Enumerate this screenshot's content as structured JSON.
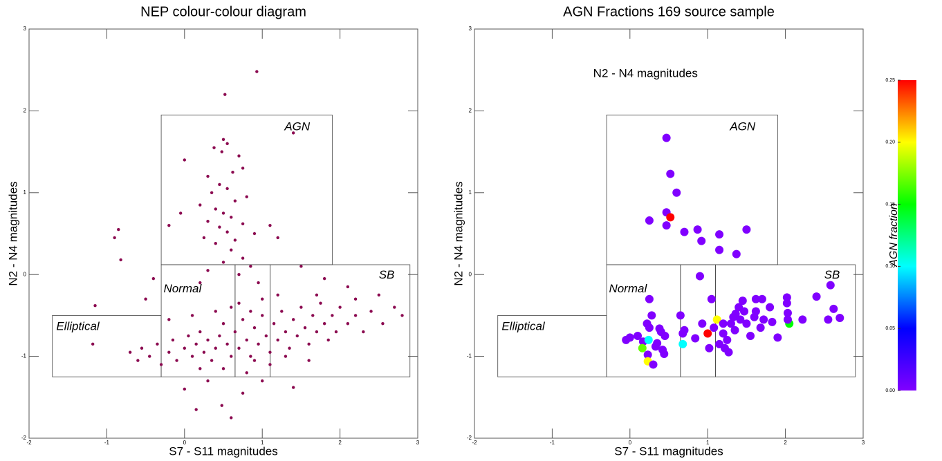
{
  "chart_data": [
    {
      "type": "scatter",
      "title": "NEP colour-colour diagram",
      "xlabel": "S7 - S11 magnitudes",
      "ylabel": "N2 - N4 magnitudes",
      "xlim": [
        -2,
        3
      ],
      "ylim": [
        -2,
        3
      ],
      "xticks": [
        -2,
        -1,
        0,
        1,
        2,
        3
      ],
      "yticks": [
        -2,
        -1,
        0,
        1,
        2,
        3
      ],
      "regions": [
        {
          "label": "Elliptical",
          "x": [
            -1.7,
            -0.3
          ],
          "y": [
            -1.25,
            -0.5
          ]
        },
        {
          "label": "AGN",
          "x": [
            -0.3,
            1.9
          ],
          "y": [
            0.12,
            1.95
          ]
        },
        {
          "label": "Normal",
          "x": [
            -0.3,
            0.65
          ],
          "y": [
            -1.25,
            0.12
          ]
        },
        {
          "label": null,
          "x": [
            0.65,
            1.1
          ],
          "y": [
            -1.25,
            0.12
          ]
        },
        {
          "label": "SB",
          "x": [
            1.1,
            2.9
          ],
          "y": [
            -1.25,
            0.12
          ]
        }
      ],
      "region_color": "#99a01a",
      "color": "#8b0a50",
      "x": [
        0.93,
        0.52,
        1.4,
        0.5,
        0.55,
        0.48,
        0.38,
        0.7,
        0.75,
        0.62,
        0.3,
        0.45,
        0.55,
        0.35,
        0.8,
        0.65,
        0.2,
        0.4,
        0.5,
        0.6,
        0.3,
        0.75,
        0.45,
        0.55,
        0.9,
        0.25,
        0.65,
        0.4,
        1.1,
        1.2,
        0.0,
        -0.05,
        -0.2,
        -0.85,
        -0.9,
        -0.82,
        -0.4,
        -1.15,
        -1.18,
        -0.5,
        0.6,
        0.75,
        0.5,
        0.85,
        0.3,
        0.7,
        1.5,
        1.8,
        2.1,
        2.5,
        2.7,
        2.8,
        0.2,
        0.95,
        -0.7,
        -0.6,
        -0.55,
        -0.45,
        -0.35,
        -0.3,
        -0.2,
        -0.15,
        -0.1,
        0.0,
        0.05,
        0.1,
        0.15,
        0.2,
        0.25,
        0.3,
        0.35,
        0.4,
        0.45,
        0.5,
        0.55,
        0.6,
        0.65,
        0.7,
        0.75,
        0.8,
        0.85,
        0.9,
        0.95,
        1.0,
        1.05,
        1.1,
        1.15,
        1.2,
        1.25,
        1.3,
        1.35,
        1.4,
        1.45,
        1.5,
        1.55,
        1.6,
        1.65,
        1.7,
        1.75,
        1.8,
        1.85,
        1.9,
        1.95,
        2.0,
        2.1,
        2.2,
        2.3,
        2.4,
        2.55,
        0.1,
        0.2,
        0.5,
        0.8,
        1.1,
        1.0,
        0.7,
        1.2,
        0.4,
        0.9,
        1.3,
        1.6,
        0.3,
        0.0,
        0.15,
        0.6,
        0.48,
        1.4,
        0.75,
        1.0,
        -0.2,
        0.6,
        1.7,
        2.2,
        0.85
      ],
      "y": [
        2.48,
        2.2,
        1.73,
        1.65,
        1.6,
        1.5,
        1.55,
        1.45,
        1.3,
        1.25,
        1.2,
        1.1,
        1.05,
        1.0,
        0.95,
        0.9,
        0.85,
        0.8,
        0.75,
        0.7,
        0.65,
        0.62,
        0.58,
        0.52,
        0.5,
        0.45,
        0.42,
        0.38,
        0.6,
        0.45,
        1.4,
        0.75,
        0.6,
        0.55,
        0.45,
        0.18,
        -0.05,
        -0.38,
        -0.85,
        -0.3,
        0.3,
        0.2,
        0.15,
        0.1,
        0.05,
        0.0,
        0.1,
        -0.05,
        -0.15,
        -0.25,
        -0.4,
        -0.5,
        -0.1,
        -0.1,
        -0.95,
        -1.05,
        -0.9,
        -1.0,
        -0.85,
        -1.1,
        -0.95,
        -0.8,
        -1.05,
        -0.9,
        -0.75,
        -1.0,
        -0.85,
        -0.7,
        -0.95,
        -0.8,
        -1.05,
        -0.9,
        -0.75,
        -0.6,
        -0.85,
        -1.0,
        -0.7,
        -0.9,
        -0.55,
        -0.8,
        -1.0,
        -0.65,
        -0.85,
        -0.5,
        -0.75,
        -0.95,
        -0.6,
        -0.8,
        -0.45,
        -0.7,
        -0.9,
        -0.55,
        -0.75,
        -0.4,
        -0.65,
        -0.85,
        -0.5,
        -0.7,
        -0.35,
        -0.6,
        -0.8,
        -0.5,
        -0.7,
        -0.4,
        -0.6,
        -0.5,
        -0.7,
        -0.45,
        -0.6,
        -0.5,
        -1.15,
        -1.15,
        -1.2,
        -1.1,
        -0.3,
        -0.35,
        -0.25,
        -0.45,
        -1.05,
        -1.0,
        -1.05,
        -1.3,
        -1.4,
        -1.65,
        -1.75,
        -1.6,
        -1.38,
        -1.45,
        -1.3,
        -0.55,
        -0.4,
        -0.25,
        -0.3,
        -0.45
      ]
    },
    {
      "type": "scatter",
      "title": "AGN Fractions 169 source sample",
      "xlabel": "S7 - S11 magnitudes",
      "ylabel": "N2 - N4 magnitudes",
      "annotation": "N2 - N4 magnitudes",
      "xlim": [
        -2,
        3
      ],
      "ylim": [
        -2,
        3
      ],
      "xticks": [
        -2,
        -1,
        0,
        1,
        2,
        3
      ],
      "yticks": [
        -2,
        -1,
        0,
        1,
        2,
        3
      ],
      "regions": [
        {
          "label": "Elliptical",
          "x": [
            -1.7,
            -0.3
          ],
          "y": [
            -1.25,
            -0.5
          ]
        },
        {
          "label": "AGN",
          "x": [
            -0.3,
            1.9
          ],
          "y": [
            0.12,
            1.95
          ]
        },
        {
          "label": "Normal",
          "x": [
            -0.3,
            0.65
          ],
          "y": [
            -1.25,
            0.12
          ]
        },
        {
          "label": null,
          "x": [
            0.65,
            1.1
          ],
          "y": [
            -1.25,
            0.12
          ]
        },
        {
          "label": "SB",
          "x": [
            1.1,
            2.9
          ],
          "y": [
            -1.25,
            0.12
          ]
        }
      ],
      "region_color": "#99a01a",
      "x": [
        0.47,
        0.52,
        0.6,
        0.47,
        0.52,
        0.25,
        0.47,
        0.7,
        0.87,
        0.92,
        1.15,
        1.15,
        1.37,
        1.5,
        0.9,
        1.05,
        0.25,
        0.28,
        0.22,
        0.25,
        0.1,
        -0.05,
        0,
        0.17,
        0.24,
        0.16,
        0.33,
        0.35,
        0.4,
        0.38,
        0.45,
        0.42,
        0.44,
        0.23,
        0.23,
        0.3,
        0.65,
        0.7,
        0.68,
        0.68,
        0.84,
        0.93,
        1.0,
        1.02,
        1.12,
        1.08,
        1.2,
        1.2,
        1.22,
        1.27,
        1.3,
        1.33,
        1.36,
        1.4,
        1.45,
        1.42,
        1.47,
        1.5,
        1.55,
        1.6,
        1.62,
        1.7,
        1.72,
        1.68,
        1.8,
        1.83,
        1.9,
        2.02,
        2.02,
        2.03,
        2.05,
        2.03,
        2.22,
        2.4,
        2.58,
        2.62,
        2.55,
        2.7,
        1.25,
        1.35,
        1.15,
        1.62
      ],
      "y": [
        1.67,
        1.23,
        1.0,
        0.76,
        0.7,
        0.66,
        0.6,
        0.52,
        0.55,
        0.41,
        0.49,
        0.3,
        0.25,
        0.55,
        -0.02,
        -0.3,
        -0.3,
        -0.5,
        -0.6,
        -0.65,
        -0.75,
        -0.8,
        -0.77,
        -0.82,
        -0.8,
        -0.9,
        -0.88,
        -0.84,
        -0.7,
        -0.66,
        -0.75,
        -0.92,
        -0.97,
        -0.98,
        -1.06,
        -1.1,
        -0.5,
        -0.68,
        -0.72,
        -0.85,
        -0.78,
        -0.6,
        -0.72,
        -0.9,
        -0.55,
        -0.65,
        -0.6,
        -0.72,
        -0.9,
        -0.95,
        -0.6,
        -0.52,
        -0.48,
        -0.4,
        -0.32,
        -0.55,
        -0.45,
        -0.6,
        -0.75,
        -0.52,
        -0.3,
        -0.3,
        -0.55,
        -0.65,
        -0.4,
        -0.58,
        -0.77,
        -0.28,
        -0.35,
        -0.47,
        -0.6,
        -0.55,
        -0.55,
        -0.27,
        -0.13,
        -0.42,
        -0.55,
        -0.53,
        -0.8,
        -0.68,
        -0.85,
        -0.45
      ],
      "fraction": [
        0,
        0,
        0,
        0,
        0.25,
        0,
        0,
        0,
        0,
        0,
        0,
        0,
        0,
        0,
        0,
        0,
        0,
        0,
        0,
        0,
        0,
        0,
        0,
        0,
        0.1,
        0.17,
        0,
        0,
        0,
        0,
        0,
        0,
        0,
        0,
        0.2,
        0,
        0,
        0,
        0,
        0.1,
        0,
        0,
        0.25,
        0,
        0.2,
        0,
        0,
        0,
        0,
        0,
        0,
        0,
        0,
        0,
        0,
        0,
        0,
        0,
        0,
        0,
        0,
        0,
        0,
        0,
        0,
        0,
        0,
        0,
        0,
        0,
        0.15,
        0,
        0,
        0,
        0,
        0,
        0,
        0,
        0,
        0,
        0,
        0
      ],
      "colorbar": {
        "label": "AGN fraction",
        "lim": [
          0,
          0.25
        ],
        "ticks": [
          {
            "value": 0,
            "label": "0.00"
          },
          {
            "value": 0.05,
            "label": "0.05"
          },
          {
            "value": 0.1,
            "label": "0.10"
          },
          {
            "value": 0.15,
            "label": "0.15"
          },
          {
            "value": 0.2,
            "label": "0.20"
          },
          {
            "value": 0.25,
            "label": "0.25"
          }
        ],
        "colors": [
          "#8000ff",
          "#0000ff",
          "#00ffff",
          "#00ff00",
          "#ffff00",
          "#ff0000"
        ]
      }
    }
  ]
}
